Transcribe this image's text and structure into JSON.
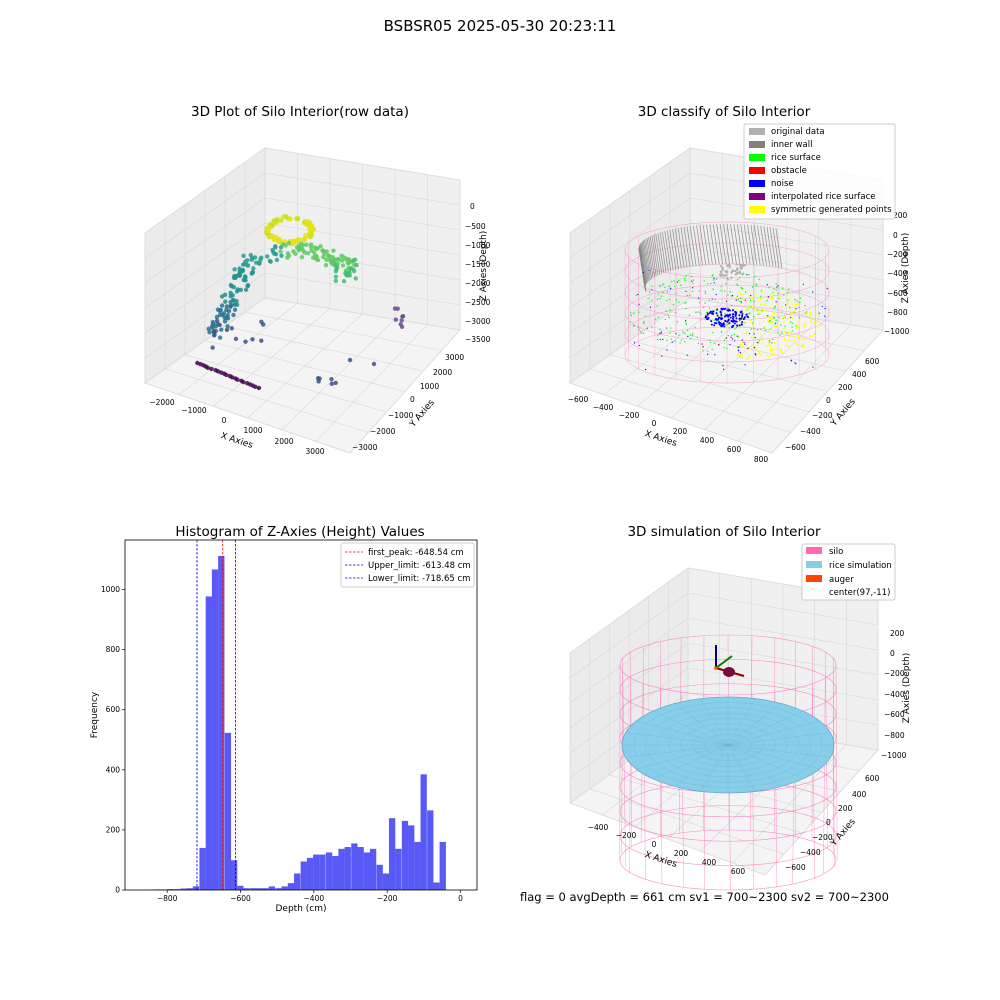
{
  "figure": {
    "suptitle": "BSBSR05 2025-05-30 20:23:11",
    "footer": "flag = 0     avgDepth = 661 cm  sv1 = 700~2300  sv2 = 700~2300"
  },
  "colors": {
    "bar": "#5050f5",
    "peak_line": "#e01010",
    "limit_line": "#0000cc",
    "silo": "#ff69b4",
    "rice_simulation": "#87ceeb",
    "auger": "#ff4500",
    "original_data": "#b0b0b0",
    "inner_wall": "#808080",
    "rice_surface": "#00ff00",
    "obstacle": "#ff0000",
    "noise": "#0000ff",
    "interpolated": "#800080",
    "symmetric": "#ffff00"
  },
  "chart_data": [
    {
      "id": "raw",
      "type": "scatter",
      "title": "3D Plot of Silo Interior(row data)",
      "xlabel": "X Axies",
      "ylabel": "Y Axies",
      "zlabel": "Z Axies (Depth)",
      "xticks": [
        "−2000",
        "−1000",
        "0",
        "1000",
        "2000",
        "3000"
      ],
      "yticks": [
        "−3000",
        "−2000",
        "−1000",
        "0",
        "1000",
        "2000",
        "3000"
      ],
      "zticks": [
        "0",
        "−500",
        "−1000",
        "−1500",
        "−2000",
        "−2500",
        "−3000",
        "−3500"
      ]
    },
    {
      "id": "classify",
      "type": "scatter",
      "title": "3D classify of Silo Interior",
      "xlabel": "X Axies",
      "ylabel": "Y Axies",
      "zlabel": "Z Axies (Depth)",
      "xticks": [
        "−600",
        "−400",
        "−200",
        "0",
        "200",
        "400",
        "600",
        "800"
      ],
      "yticks": [
        "−600",
        "−400",
        "−200",
        "0",
        "200",
        "400",
        "600"
      ],
      "zticks": [
        "200",
        "0",
        "−200",
        "−400",
        "−600",
        "−800",
        "−1000"
      ],
      "legend": [
        "original data",
        "inner wall",
        "rice surface",
        "obstacle",
        "noise",
        "interpolated rice surface",
        "symmetric generated points"
      ],
      "legend_placement": "top-right"
    },
    {
      "id": "hist",
      "type": "bar",
      "title": "Histogram of Z-Axies (Height) Values",
      "xlabel": "Depth (cm)",
      "ylabel": "Frequency",
      "xlim": [
        -915,
        45
      ],
      "ylim": [
        0,
        1165
      ],
      "xticks": [
        -800,
        -600,
        -400,
        -200,
        0
      ],
      "yticks": [
        0,
        200,
        400,
        600,
        800,
        1000
      ],
      "bin_width": 17.2,
      "bins": [
        {
          "x": -868,
          "y": 1
        },
        {
          "x": -850,
          "y": 1
        },
        {
          "x": -833,
          "y": 2
        },
        {
          "x": -816,
          "y": 2
        },
        {
          "x": -799,
          "y": 3
        },
        {
          "x": -781,
          "y": 3
        },
        {
          "x": -764,
          "y": 5
        },
        {
          "x": -747,
          "y": 6
        },
        {
          "x": -730,
          "y": 12
        },
        {
          "x": -712,
          "y": 140
        },
        {
          "x": -695,
          "y": 977
        },
        {
          "x": -678,
          "y": 1067
        },
        {
          "x": -661,
          "y": 1112
        },
        {
          "x": -643,
          "y": 523
        },
        {
          "x": -626,
          "y": 99
        },
        {
          "x": -609,
          "y": 14
        },
        {
          "x": -592,
          "y": 6
        },
        {
          "x": -574,
          "y": 6
        },
        {
          "x": -557,
          "y": 6
        },
        {
          "x": -540,
          "y": 6
        },
        {
          "x": -523,
          "y": 12
        },
        {
          "x": -505,
          "y": 6
        },
        {
          "x": -488,
          "y": 12
        },
        {
          "x": -471,
          "y": 23
        },
        {
          "x": -454,
          "y": 55
        },
        {
          "x": -436,
          "y": 95
        },
        {
          "x": -419,
          "y": 107
        },
        {
          "x": -402,
          "y": 118
        },
        {
          "x": -385,
          "y": 118
        },
        {
          "x": -367,
          "y": 125
        },
        {
          "x": -350,
          "y": 113
        },
        {
          "x": -333,
          "y": 137
        },
        {
          "x": -316,
          "y": 143
        },
        {
          "x": -298,
          "y": 155
        },
        {
          "x": -281,
          "y": 143
        },
        {
          "x": -264,
          "y": 125
        },
        {
          "x": -247,
          "y": 137
        },
        {
          "x": -229,
          "y": 84
        },
        {
          "x": -212,
          "y": 55
        },
        {
          "x": -195,
          "y": 239
        },
        {
          "x": -178,
          "y": 137
        },
        {
          "x": -160,
          "y": 230
        },
        {
          "x": -143,
          "y": 215
        },
        {
          "x": -126,
          "y": 160
        },
        {
          "x": -109,
          "y": 385
        },
        {
          "x": -91,
          "y": 265
        },
        {
          "x": -74,
          "y": 25
        },
        {
          "x": -57,
          "y": 160
        }
      ],
      "lines": [
        {
          "label": "first_peak: -648.54 cm",
          "x": -648.54,
          "color": "#e01010"
        },
        {
          "label": "Upper_limit: -613.48 cm",
          "x": -613.48,
          "color": "#0000cc"
        },
        {
          "label": "Lower_limit: -718.65 cm",
          "x": -718.65,
          "color": "#0000cc"
        }
      ],
      "legend_placement": "top-right"
    },
    {
      "id": "sim",
      "type": "scatter",
      "title": "3D simulation of Silo Interior",
      "xlabel": "X Axies",
      "ylabel": "Y Axies",
      "zlabel": "Z Axies (Depth)",
      "xticks": [
        "−400",
        "−200",
        "0",
        "200",
        "400",
        "600"
      ],
      "yticks": [
        "−600",
        "−400",
        "−200",
        "0",
        "200",
        "400",
        "600"
      ],
      "zticks": [
        "200",
        "0",
        "−200",
        "−400",
        "−600",
        "−800",
        "−1000"
      ],
      "legend": [
        "silo",
        "rice simulation",
        "auger",
        "center(97,-11)"
      ],
      "legend_placement": "top-right"
    }
  ]
}
